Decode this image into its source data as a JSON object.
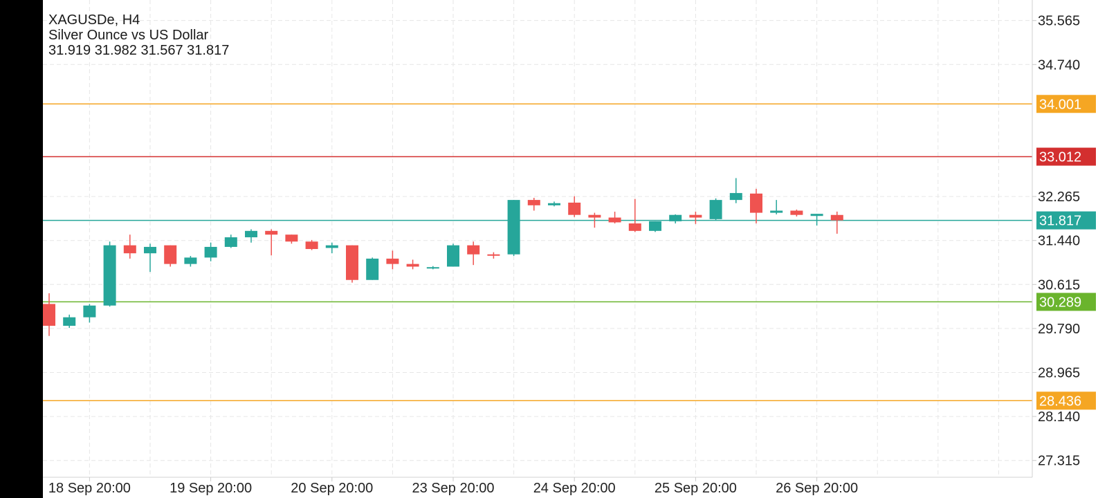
{
  "header": {
    "symbol_line": "XAGUSDe, H4",
    "description": "Silver Ounce vs US Dollar",
    "ohlc": "31.919 31.982 31.567 31.817"
  },
  "chart_data": {
    "type": "candlestick",
    "title": "",
    "ylim": [
      27.0,
      35.95
    ],
    "grid": true,
    "y_ticks": [
      "35.565",
      "34.740",
      "32.265",
      "31.440",
      "30.615",
      "29.790",
      "28.965",
      "28.140",
      "27.315"
    ],
    "x_ticks": [
      {
        "label": "18 Sep 20:00",
        "bar": 2
      },
      {
        "label": "19 Sep 20:00",
        "bar": 8
      },
      {
        "label": "20 Sep 20:00",
        "bar": 14
      },
      {
        "label": "23 Sep 20:00",
        "bar": 20
      },
      {
        "label": "24 Sep 20:00",
        "bar": 26
      },
      {
        "label": "25 Sep 20:00",
        "bar": 32
      },
      {
        "label": "26 Sep 20:00",
        "bar": 38
      }
    ],
    "levels": [
      {
        "value": 34.001,
        "label": "34.001",
        "color": "#f5a623"
      },
      {
        "value": 33.012,
        "label": "33.012",
        "color": "#d32f2f"
      },
      {
        "value": 31.817,
        "label": "31.817",
        "color": "#26a69a"
      },
      {
        "value": 30.289,
        "label": "30.289",
        "color": "#6ab42d"
      },
      {
        "value": 28.436,
        "label": "28.436",
        "color": "#f5a623"
      }
    ],
    "up_color": "#26a69a",
    "down_color": "#ef5350",
    "candles": [
      [
        30.25,
        30.45,
        29.65,
        29.84
      ],
      [
        29.84,
        30.05,
        29.8,
        30.0
      ],
      [
        30.0,
        30.25,
        29.9,
        30.22
      ],
      [
        30.22,
        31.42,
        30.2,
        31.35
      ],
      [
        31.35,
        31.55,
        31.1,
        31.2
      ],
      [
        31.2,
        31.38,
        30.85,
        31.32
      ],
      [
        31.35,
        31.35,
        30.95,
        31.0
      ],
      [
        31.0,
        31.15,
        30.95,
        31.12
      ],
      [
        31.12,
        31.4,
        31.05,
        31.32
      ],
      [
        31.32,
        31.55,
        31.3,
        31.5
      ],
      [
        31.5,
        31.65,
        31.4,
        31.62
      ],
      [
        31.62,
        31.65,
        31.16,
        31.55
      ],
      [
        31.55,
        31.55,
        31.38,
        31.42
      ],
      [
        31.42,
        31.45,
        31.26,
        31.28
      ],
      [
        31.3,
        31.4,
        31.2,
        31.35
      ],
      [
        31.35,
        31.35,
        30.65,
        30.7
      ],
      [
        30.7,
        31.12,
        30.7,
        31.1
      ],
      [
        31.1,
        31.25,
        30.9,
        31.0
      ],
      [
        31.0,
        31.08,
        30.9,
        30.95
      ],
      [
        30.93,
        30.96,
        30.9,
        30.94
      ],
      [
        30.95,
        31.38,
        30.95,
        31.35
      ],
      [
        31.35,
        31.42,
        30.98,
        31.18
      ],
      [
        31.18,
        31.22,
        31.1,
        31.17
      ],
      [
        31.18,
        32.2,
        31.15,
        32.2
      ],
      [
        32.2,
        32.24,
        32.0,
        32.1
      ],
      [
        32.1,
        32.17,
        32.08,
        32.14
      ],
      [
        32.15,
        32.27,
        31.88,
        31.92
      ],
      [
        31.92,
        31.96,
        31.68,
        31.87
      ],
      [
        31.87,
        31.98,
        31.76,
        31.78
      ],
      [
        31.76,
        32.22,
        31.6,
        31.62
      ],
      [
        31.62,
        31.8,
        31.6,
        31.8
      ],
      [
        31.8,
        31.93,
        31.76,
        31.92
      ],
      [
        31.92,
        31.98,
        31.75,
        31.87
      ],
      [
        31.84,
        32.23,
        31.82,
        32.2
      ],
      [
        32.2,
        32.61,
        32.14,
        32.33
      ],
      [
        32.32,
        32.41,
        31.76,
        31.96
      ],
      [
        31.96,
        32.2,
        31.93,
        32.0
      ],
      [
        32.0,
        32.02,
        31.89,
        31.92
      ],
      [
        31.9,
        31.94,
        31.72,
        31.94
      ],
      [
        31.919,
        31.982,
        31.567,
        31.817
      ]
    ]
  }
}
